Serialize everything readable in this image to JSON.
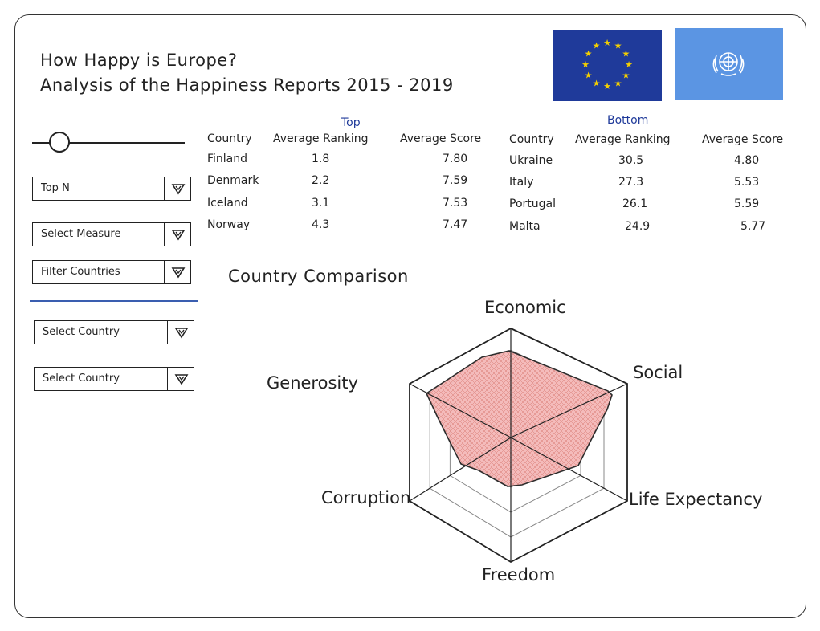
{
  "header": {
    "title_line1": "How Happy is Europe?",
    "title_line2": "Analysis of the Happiness Reports 2015 - 2019"
  },
  "flags": {
    "eu": {
      "color": "#1f3a9a",
      "star_color": "#f5d000",
      "icon": "eu-flag-icon"
    },
    "un": {
      "color": "#5b95e3",
      "icon": "un-emblem-icon"
    }
  },
  "controls": {
    "slider": {
      "value": 0.18
    },
    "dropdowns": [
      {
        "label": "Top N"
      },
      {
        "label": "Select Measure"
      },
      {
        "label": "Filter Countries"
      },
      {
        "label": "Select Country"
      },
      {
        "label": "Select Country"
      }
    ]
  },
  "top_table": {
    "heading": "Top",
    "columns": [
      "Country",
      "Average Ranking",
      "Average Score"
    ],
    "rows": [
      {
        "country": "Finland",
        "ranking": "1.8",
        "score": "7.80"
      },
      {
        "country": "Denmark",
        "ranking": "2.2",
        "score": "7.59"
      },
      {
        "country": "Iceland",
        "ranking": "3.1",
        "score": "7.53"
      },
      {
        "country": "Norway",
        "ranking": "4.3",
        "score": "7.47"
      }
    ]
  },
  "bottom_table": {
    "heading": "Bottom",
    "columns": [
      "Country",
      "Average Ranking",
      "Average Score"
    ],
    "rows": [
      {
        "country": "Ukraine",
        "ranking": "30.5",
        "score": "4.80"
      },
      {
        "country": "Italy",
        "ranking": "27.3",
        "score": "5.53"
      },
      {
        "country": "Portugal",
        "ranking": "26.1",
        "score": "5.59"
      },
      {
        "country": "Malta",
        "ranking": "24.9",
        "score": "5.77"
      }
    ]
  },
  "comparison": {
    "title": "Country Comparison",
    "axes": [
      "Economic",
      "Social",
      "Life Expectancy",
      "Freedom",
      "Corruption",
      "Generosity"
    ],
    "fill_color": "#f4b8b8",
    "stroke_color": "#222222"
  }
}
